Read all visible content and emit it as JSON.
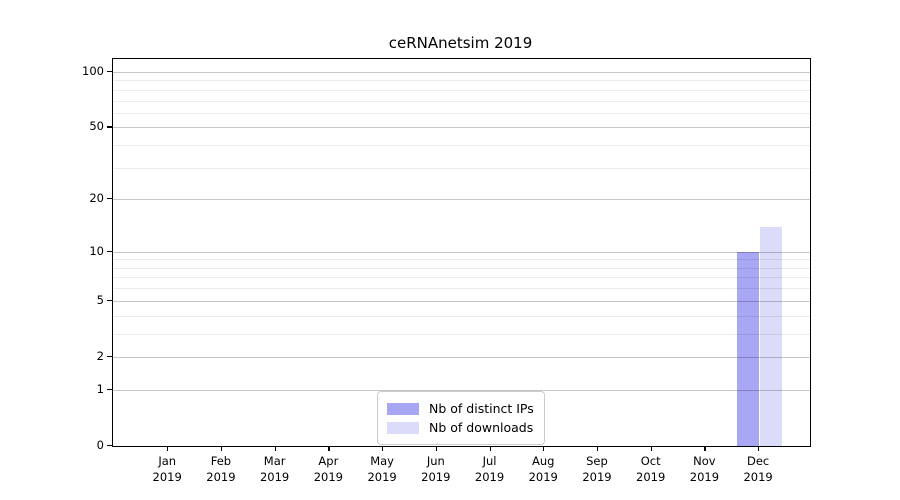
{
  "title": "ceRNAnetsim 2019",
  "chart_data": {
    "type": "bar",
    "title": "ceRNAnetsim 2019",
    "categories": [
      "Jan 2019",
      "Feb 2019",
      "Mar 2019",
      "Apr 2019",
      "May 2019",
      "Jun 2019",
      "Jul 2019",
      "Aug 2019",
      "Sep 2019",
      "Oct 2019",
      "Nov 2019",
      "Dec 2019"
    ],
    "series": [
      {
        "name": "Nb of distinct IPs",
        "color": "#a7a7f4",
        "values": [
          0,
          0,
          0,
          0,
          0,
          0,
          0,
          0,
          0,
          0,
          0,
          10
        ]
      },
      {
        "name": "Nb of downloads",
        "color": "#dbdcfa",
        "values": [
          0,
          0,
          0,
          0,
          0,
          0,
          0,
          0,
          0,
          0,
          0,
          14
        ]
      }
    ],
    "xlabel": "",
    "ylabel": "",
    "yscale": "log1p",
    "ylim": [
      0,
      117.5
    ],
    "y_ticks": [
      0,
      1,
      2,
      5,
      10,
      20,
      50,
      100
    ],
    "y_minor_gridlines": [
      3,
      4,
      6,
      7,
      8,
      9,
      30,
      40,
      60,
      70,
      80,
      90
    ],
    "grid": "horizontal",
    "legend_position": "lower center"
  },
  "colors": {
    "background": "#ffffff",
    "spine": "#000000",
    "text": "#000000",
    "major_grid": "rgba(0,0,0,0.22)",
    "minor_grid": "rgba(0,0,0,0.08)",
    "legend_border": "#cccccc"
  }
}
